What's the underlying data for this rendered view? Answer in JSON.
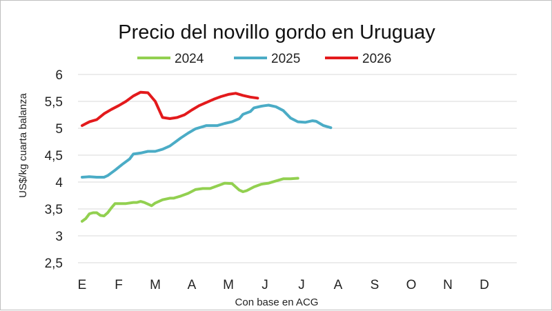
{
  "chart_data": {
    "type": "line",
    "title": "Precio del novillo gordo en Uruguay",
    "xlabel": "Con base en ACG",
    "ylabel": "US$/kg cuarta balanza",
    "ylim": [
      2.5,
      6
    ],
    "yticks": [
      "2,5",
      "3",
      "3,5",
      "4",
      "4,5",
      "5",
      "5,5",
      "6"
    ],
    "categories": [
      "E",
      "F",
      "M",
      "A",
      "M",
      "J",
      "J",
      "A",
      "S",
      "O",
      "N",
      "D"
    ],
    "grid": true,
    "legend_position": "top",
    "series": [
      {
        "name": "2024",
        "color": "#92d050",
        "points": [
          [
            0,
            3.27
          ],
          [
            0.2,
            3.32
          ],
          [
            0.4,
            3.41
          ],
          [
            0.6,
            3.43
          ],
          [
            0.8,
            3.43
          ],
          [
            1.0,
            3.38
          ],
          [
            1.2,
            3.37
          ],
          [
            1.4,
            3.43
          ],
          [
            1.6,
            3.52
          ],
          [
            1.8,
            3.6
          ],
          [
            2.4,
            3.6
          ],
          [
            2.8,
            3.62
          ],
          [
            3.0,
            3.62
          ],
          [
            3.2,
            3.64
          ],
          [
            3.4,
            3.62
          ],
          [
            3.8,
            3.56
          ],
          [
            4.0,
            3.61
          ],
          [
            4.4,
            3.67
          ],
          [
            4.8,
            3.7
          ],
          [
            5.0,
            3.7
          ],
          [
            5.4,
            3.74
          ],
          [
            5.8,
            3.79
          ],
          [
            6.2,
            3.86
          ],
          [
            6.6,
            3.88
          ],
          [
            7.0,
            3.88
          ],
          [
            7.4,
            3.93
          ],
          [
            7.8,
            3.98
          ],
          [
            8.2,
            3.97
          ],
          [
            8.6,
            3.85
          ],
          [
            8.8,
            3.82
          ],
          [
            9.0,
            3.84
          ],
          [
            9.4,
            3.91
          ],
          [
            9.8,
            3.96
          ],
          [
            10.2,
            3.98
          ],
          [
            10.6,
            4.02
          ],
          [
            11.0,
            4.06
          ],
          [
            11.4,
            4.06
          ],
          [
            11.8,
            4.07
          ]
        ]
      },
      {
        "name": "2025",
        "color": "#4bacc6",
        "points": [
          [
            0,
            4.09
          ],
          [
            0.4,
            4.1
          ],
          [
            0.8,
            4.09
          ],
          [
            1.2,
            4.09
          ],
          [
            1.4,
            4.12
          ],
          [
            1.8,
            4.22
          ],
          [
            2.2,
            4.33
          ],
          [
            2.6,
            4.43
          ],
          [
            2.8,
            4.52
          ],
          [
            3.2,
            4.54
          ],
          [
            3.6,
            4.57
          ],
          [
            4.0,
            4.57
          ],
          [
            4.4,
            4.61
          ],
          [
            4.8,
            4.67
          ],
          [
            5.0,
            4.72
          ],
          [
            5.4,
            4.82
          ],
          [
            5.8,
            4.91
          ],
          [
            6.2,
            4.99
          ],
          [
            6.6,
            5.03
          ],
          [
            6.8,
            5.05
          ],
          [
            7.4,
            5.05
          ],
          [
            7.8,
            5.09
          ],
          [
            8.2,
            5.12
          ],
          [
            8.6,
            5.18
          ],
          [
            8.8,
            5.26
          ],
          [
            9.2,
            5.31
          ],
          [
            9.4,
            5.38
          ],
          [
            9.8,
            5.41
          ],
          [
            10.0,
            5.42
          ],
          [
            10.2,
            5.43
          ],
          [
            10.6,
            5.4
          ],
          [
            11.0,
            5.33
          ],
          [
            11.4,
            5.19
          ],
          [
            11.8,
            5.12
          ],
          [
            12.2,
            5.11
          ],
          [
            12.6,
            5.14
          ],
          [
            12.8,
            5.13
          ],
          [
            13.2,
            5.05
          ],
          [
            13.6,
            5.01
          ]
        ]
      },
      {
        "name": "2026",
        "color": "#e31a1c",
        "points": [
          [
            0,
            5.05
          ],
          [
            0.4,
            5.12
          ],
          [
            0.8,
            5.16
          ],
          [
            1.2,
            5.27
          ],
          [
            1.6,
            5.35
          ],
          [
            2.0,
            5.42
          ],
          [
            2.4,
            5.5
          ],
          [
            2.8,
            5.6
          ],
          [
            3.2,
            5.67
          ],
          [
            3.6,
            5.66
          ],
          [
            4.0,
            5.5
          ],
          [
            4.4,
            5.2
          ],
          [
            4.8,
            5.18
          ],
          [
            5.2,
            5.2
          ],
          [
            5.6,
            5.25
          ],
          [
            6.0,
            5.34
          ],
          [
            6.4,
            5.42
          ],
          [
            6.8,
            5.48
          ],
          [
            7.2,
            5.54
          ],
          [
            7.6,
            5.59
          ],
          [
            8.0,
            5.63
          ],
          [
            8.4,
            5.65
          ],
          [
            8.8,
            5.61
          ],
          [
            9.2,
            5.58
          ],
          [
            9.6,
            5.56
          ]
        ]
      }
    ]
  }
}
